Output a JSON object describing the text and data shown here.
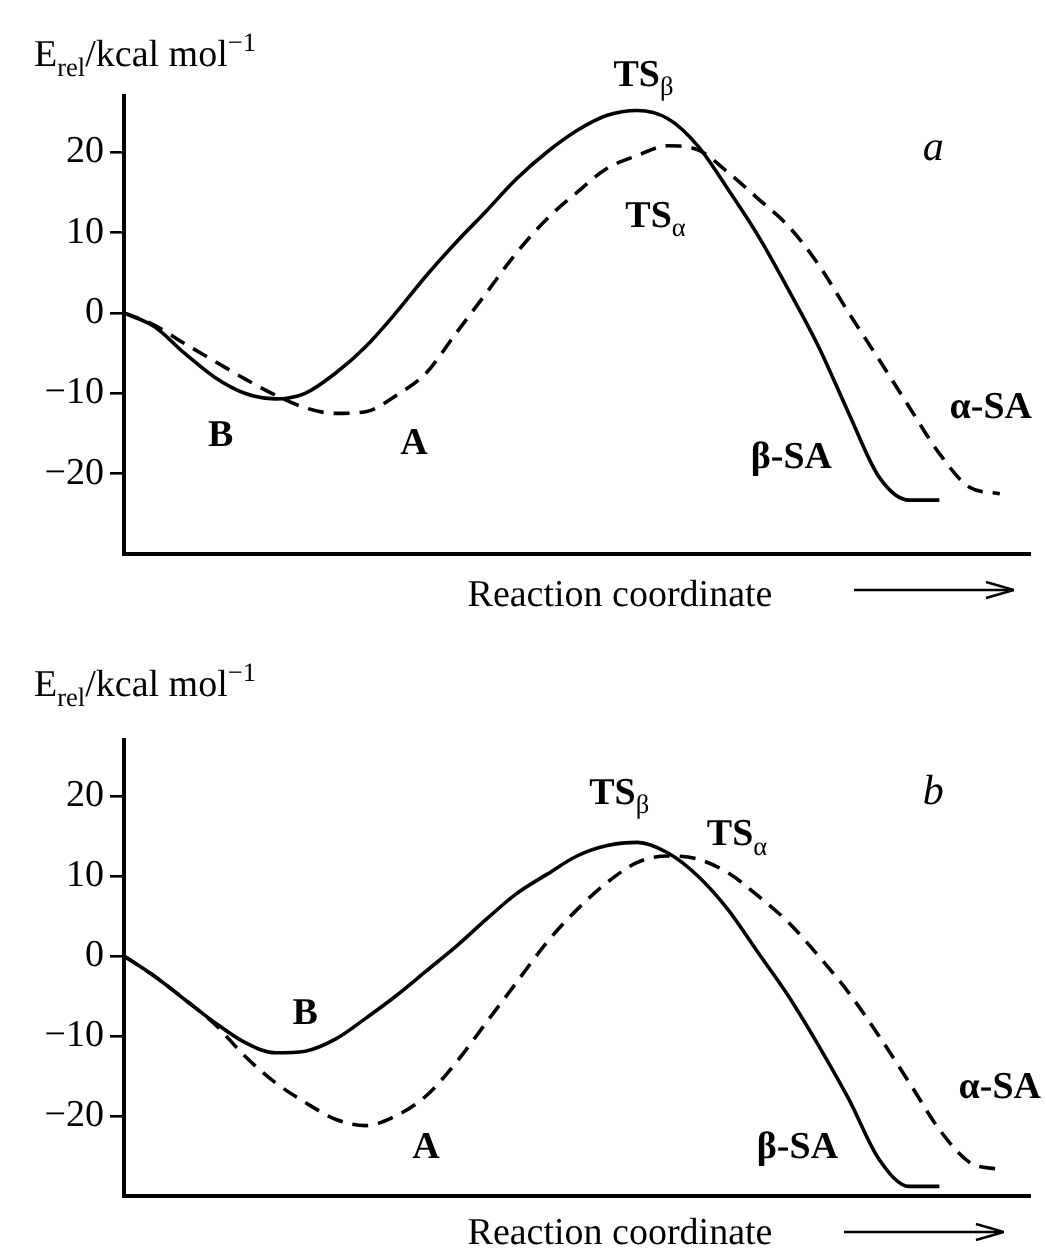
{
  "chart_data": [
    {
      "type": "line",
      "title": "a",
      "xlabel": "Reaction coordinate",
      "ylabel": "E$_{rel}$/kcal mol$^{−1}$",
      "categories": [
        null,
        null,
        null,
        null,
        null,
        null,
        null,
        null,
        null,
        null,
        null,
        null,
        null,
        null,
        null,
        null,
        null,
        null,
        null,
        null,
        null,
        null,
        null,
        null,
        null,
        null,
        null,
        null,
        null,
        null,
        null
      ],
      "series": [
        {
          "color": "#000000",
          "line_style": "solid",
          "values": [
            0,
            -1.7,
            -5,
            -8,
            -10,
            -10.7,
            -10,
            -7.5,
            -4.2,
            0,
            4.6,
            8.8,
            12.7,
            16.7,
            20,
            22.7,
            24.6,
            25.2,
            24.2,
            20.8,
            15.4,
            9.6,
            2.9,
            -4.2,
            -12.5,
            -20.4,
            -23.3,
            -23.3,
            null,
            null,
            null
          ]
        },
        {
          "color": "#000000",
          "line_style": "dashed",
          "values": [
            0,
            -1.5,
            -3.8,
            -6,
            -8.2,
            -10.2,
            -11.8,
            -12.5,
            -12.3,
            -10.3,
            -7.5,
            -2.5,
            2.5,
            7.5,
            11.7,
            15,
            18,
            19.6,
            20.8,
            20.3,
            17.5,
            14.2,
            10.8,
            6,
            0,
            -5.8,
            -11.7,
            -17.5,
            -21.7,
            -22.5,
            null
          ]
        }
      ],
      "ylim": [
        -30,
        27
      ],
      "yticks": [
        -20,
        -10,
        0,
        10,
        20
      ],
      "tick_labels": "y",
      "grid": false,
      "legend": false,
      "annotations": [
        "TS$_{β}$",
        "TS$_{α}$",
        "B",
        "A",
        "β-SA",
        "α-SA"
      ]
    },
    {
      "type": "line",
      "title": "b",
      "xlabel": "Reaction coordinate",
      "ylabel": "E$_{rel}$/kcal mol$^{−1}$",
      "categories": [
        null,
        null,
        null,
        null,
        null,
        null,
        null,
        null,
        null,
        null,
        null,
        null,
        null,
        null,
        null,
        null,
        null,
        null,
        null,
        null,
        null,
        null,
        null,
        null,
        null,
        null,
        null,
        null,
        null,
        null,
        null
      ],
      "series": [
        {
          "color": "#000000",
          "line_style": "solid",
          "values": [
            0,
            -2.5,
            -5.4,
            -8.3,
            -10.8,
            -12.1,
            -11.9,
            -10.4,
            -7.8,
            -5,
            -1.9,
            1.2,
            4.6,
            7.8,
            10.2,
            12.5,
            13.8,
            14.2,
            12.9,
            10,
            5.8,
            0.4,
            -5,
            -11.2,
            -17.9,
            -25.4,
            -28.8,
            -28.8,
            null,
            null,
            null
          ]
        },
        {
          "color": "#000000",
          "line_style": "dashed",
          "values": [
            0,
            -2.5,
            -5.4,
            -8.5,
            -12.5,
            -15.8,
            -18.3,
            -20.4,
            -21.2,
            -20,
            -17.5,
            -13.3,
            -8.3,
            -3.3,
            1.7,
            5.8,
            9.2,
            11.7,
            12.5,
            12.1,
            10.4,
            7.5,
            4.2,
            0,
            -4.6,
            -10,
            -15.8,
            -21.7,
            -25.8,
            -26.7,
            null
          ]
        }
      ],
      "ylim": [
        -30,
        27
      ],
      "yticks": [
        -20,
        -10,
        0,
        10,
        20
      ],
      "tick_labels": "y",
      "grid": false,
      "legend": false,
      "annotations": [
        "TS$_{β}$",
        "TS$_{α}$",
        "B",
        "A",
        "β-SA",
        "α-SA"
      ]
    }
  ]
}
